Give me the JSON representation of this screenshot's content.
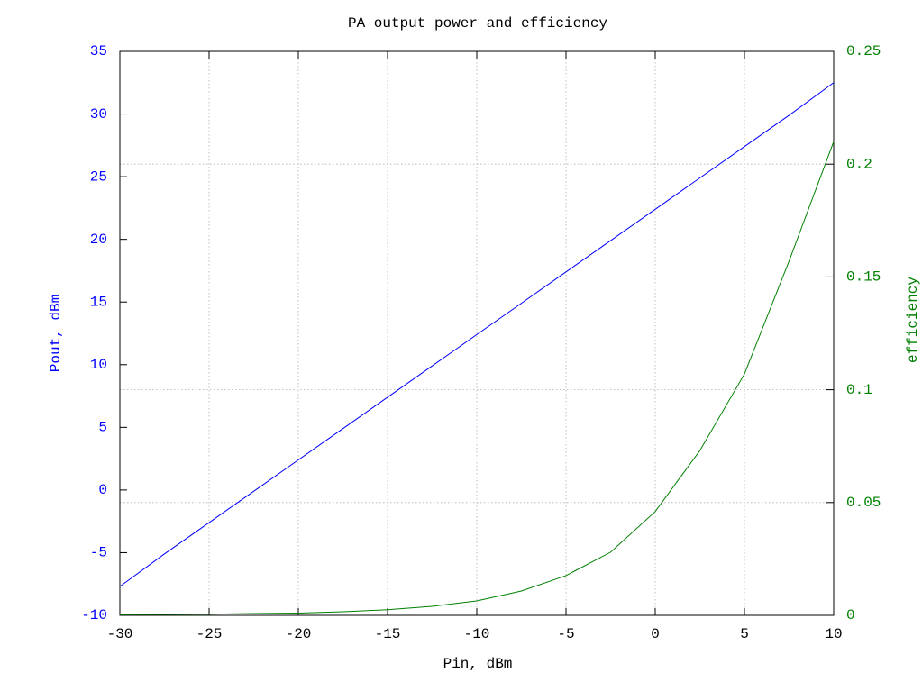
{
  "chart_data": {
    "type": "line",
    "title": "PA output power and efficiency",
    "xlabel": "Pin, dBm",
    "ylabel": "Pout, dBm",
    "y2label": "efficiency",
    "x": [
      -30,
      -27.5,
      -25,
      -22.5,
      -20,
      -17.5,
      -15,
      -12.5,
      -10,
      -7.5,
      -5,
      -2.5,
      0,
      2.5,
      5,
      7.5,
      10
    ],
    "series": [
      {
        "name": "Pout",
        "color": "#0000ff",
        "axis": "y",
        "values": [
          -7.7,
          -5.1,
          -2.6,
          -0.1,
          2.4,
          4.9,
          7.4,
          9.9,
          12.4,
          14.9,
          17.4,
          19.9,
          22.4,
          24.9,
          27.4,
          29.9,
          32.5
        ]
      },
      {
        "name": "efficiency",
        "color": "#008000",
        "axis": "y2",
        "values": [
          0.0003,
          0.0004,
          0.0005,
          0.0008,
          0.001,
          0.0016,
          0.0025,
          0.004,
          0.0064,
          0.0108,
          0.0176,
          0.028,
          0.046,
          0.073,
          0.107,
          0.157,
          0.21
        ]
      }
    ],
    "xlim": [
      -30,
      10
    ],
    "xticks": [
      -30,
      -25,
      -20,
      -15,
      -10,
      -5,
      0,
      5,
      10
    ],
    "ylim": [
      -10,
      35
    ],
    "yticks": [
      -10,
      -5,
      0,
      5,
      10,
      15,
      20,
      25,
      30,
      35
    ],
    "y2lim": [
      0,
      0.25
    ],
    "y2ticks": [
      0,
      0.05,
      0.1,
      0.15,
      0.2,
      0.25
    ],
    "xgrid": true,
    "y2grid": true,
    "ylabel_color": "#0000ff",
    "y2label_color": "#008000"
  }
}
